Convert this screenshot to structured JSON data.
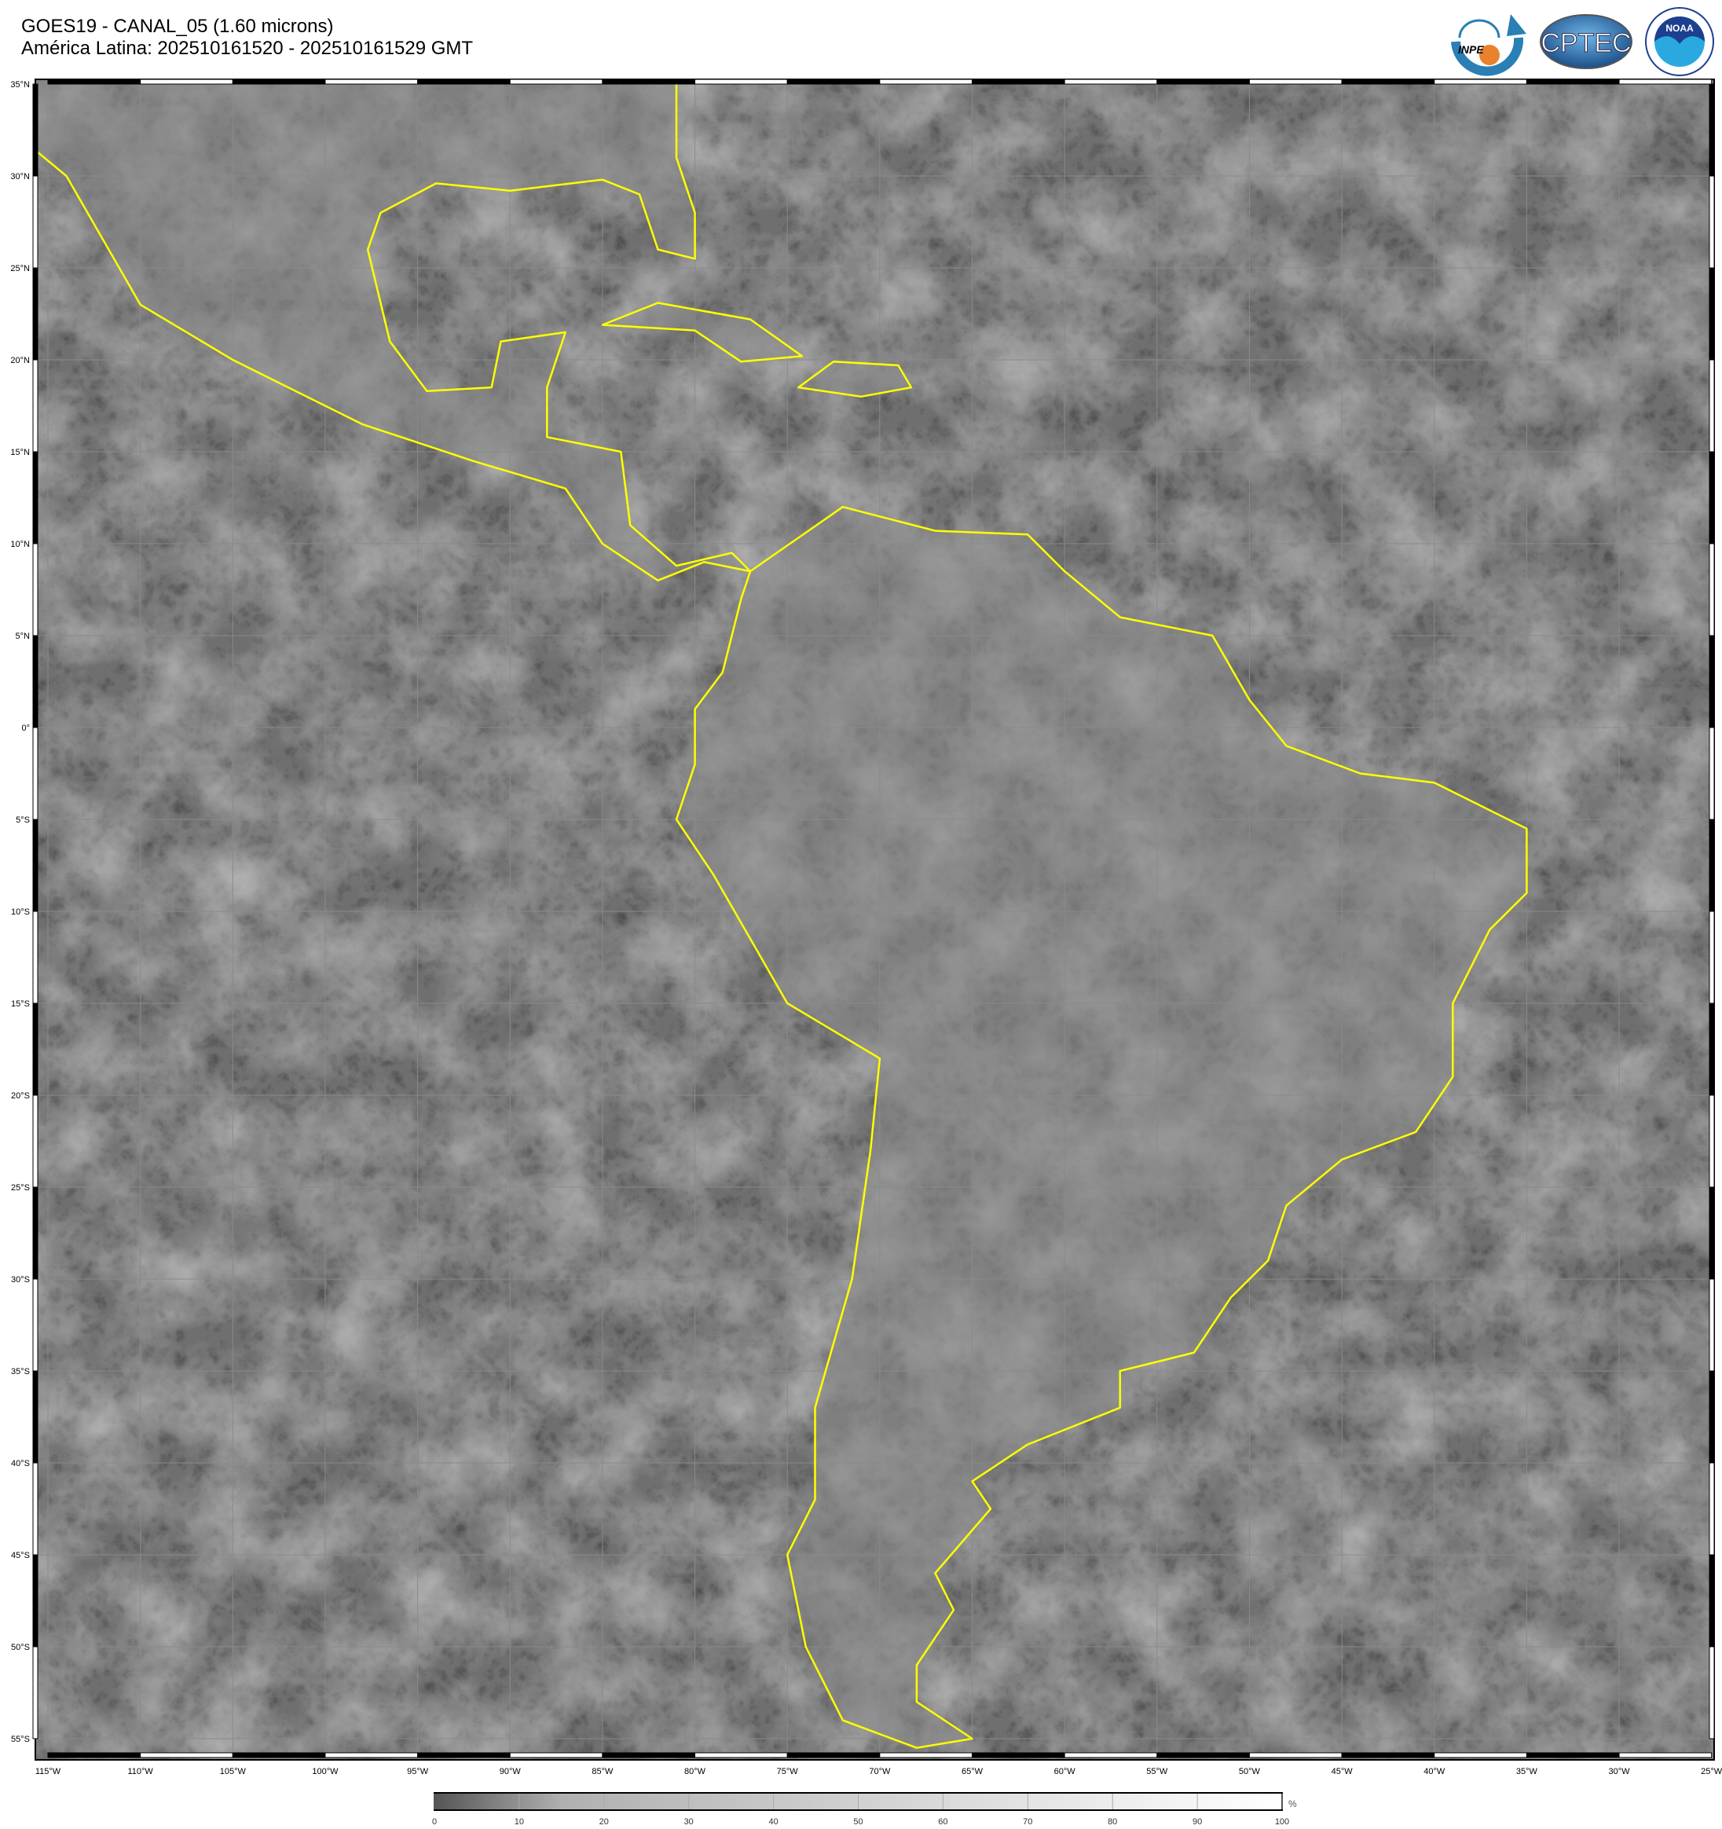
{
  "header": {
    "title": "GOES19 - CANAL_05 (1.60 microns)",
    "subtitle": "América Latina: 202510161520 - 202510161529 GMT"
  },
  "logos": [
    {
      "name": "INPE",
      "text": "INPE"
    },
    {
      "name": "CPTEC",
      "text": "CPTEC"
    },
    {
      "name": "NOAA",
      "text": "NOAA"
    }
  ],
  "map": {
    "lat_labels": [
      "35°N",
      "30°N",
      "25°N",
      "20°N",
      "15°N",
      "10°N",
      "5°N",
      "0°",
      "5°S",
      "10°S",
      "15°S",
      "20°S",
      "25°S",
      "30°S",
      "35°S",
      "40°S",
      "45°S",
      "50°S",
      "55°S"
    ],
    "lon_labels": [
      "115°W",
      "110°W",
      "105°W",
      "100°W",
      "95°W",
      "90°W",
      "85°W",
      "80°W",
      "75°W",
      "70°W",
      "65°W",
      "60°W",
      "55°W",
      "50°W",
      "45°W",
      "40°W",
      "35°W",
      "30°W",
      "25°W"
    ],
    "coastline_color": "#ffff00",
    "grid_color": "#8a8a8a"
  },
  "colorbar": {
    "unit": "%",
    "ticks": [
      "0",
      "10",
      "20",
      "30",
      "40",
      "50",
      "60",
      "70",
      "80",
      "90",
      "100"
    ],
    "range": [
      0,
      100
    ],
    "color_low": "#555555",
    "color_high": "#ffffff"
  }
}
